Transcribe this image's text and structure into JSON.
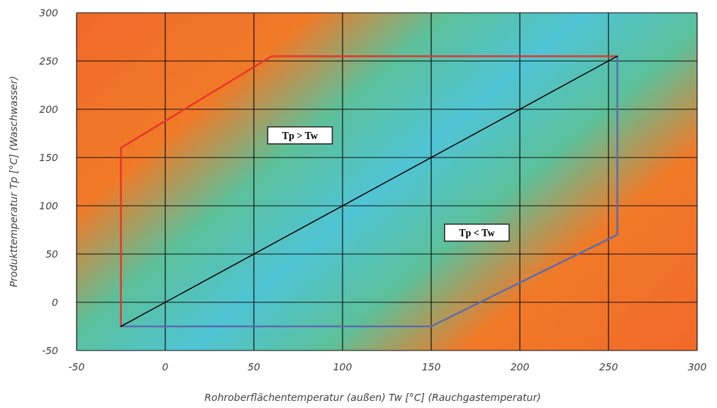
{
  "chart_data": {
    "type": "line",
    "xlabel": "Rohroberflächentemperatur (außen) Tw [°C] (Rauchgastemperatur)",
    "ylabel": "Produkttemperatur Tp [°C] (Waschwasser)",
    "xlim": [
      -50,
      300
    ],
    "xticks": [
      -50,
      0,
      50,
      100,
      150,
      200,
      250,
      300
    ],
    "ylim": [
      -50,
      300
    ],
    "yticks": [
      -50,
      0,
      50,
      100,
      150,
      200,
      250,
      300
    ],
    "grid": true,
    "marker": "none",
    "line_style": "solid",
    "series": [
      {
        "color": "#e8352b",
        "x": [
          -25,
          -25,
          60,
          255
        ],
        "values": [
          -25,
          160,
          255,
          255
        ]
      },
      {
        "color": "#5b6bb0",
        "x": [
          -25,
          150,
          255,
          255
        ],
        "values": [
          -25,
          -25,
          70,
          255
        ]
      },
      {
        "color": "#000000",
        "x": [
          -25,
          255
        ],
        "values": [
          -25,
          255
        ]
      }
    ],
    "annotations": [
      "Tp > Tw",
      "Tp < Tw"
    ]
  }
}
